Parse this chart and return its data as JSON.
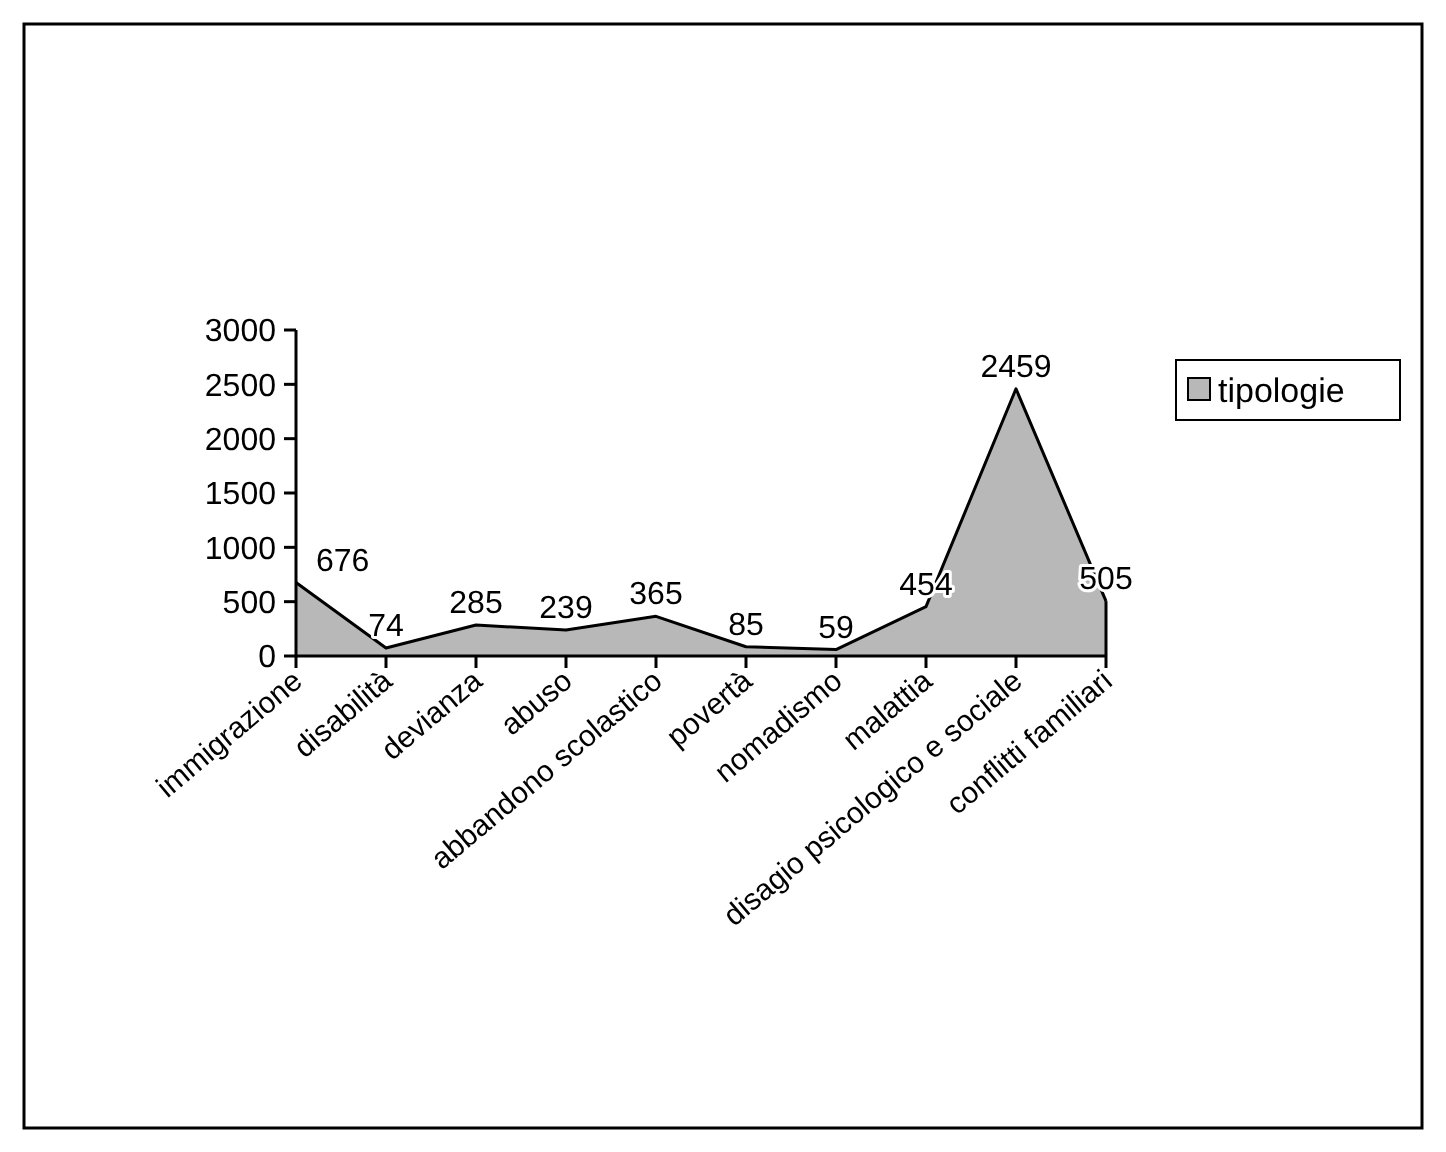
{
  "chart_data": {
    "type": "area",
    "categories": [
      "immigrazione",
      "disabilità",
      "devianza",
      "abuso",
      "abbandono scolastico",
      "povertà",
      "nomadismo",
      "malattia",
      "disagio psicologico e sociale",
      "conflitti familiari"
    ],
    "series": [
      {
        "name": "tipologie",
        "color": "#b8b8b8",
        "values": [
          676,
          74,
          285,
          239,
          365,
          85,
          59,
          454,
          2459,
          505
        ]
      }
    ],
    "ylim": [
      0,
      3000
    ],
    "yticks": [
      0,
      500,
      1000,
      1500,
      2000,
      2500,
      3000
    ],
    "data_labels": true,
    "legend": "right",
    "grid": false
  }
}
